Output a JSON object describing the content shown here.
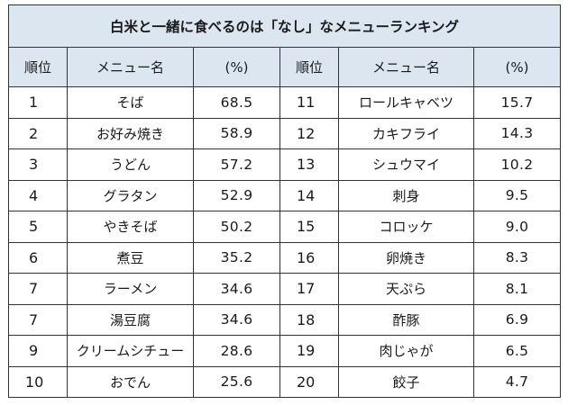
{
  "table": {
    "title": "白米と一緒に食べるのは「なし」なメニューランキング",
    "headers": {
      "rank": "順位",
      "menu": "メニュー名",
      "percent": "(%)"
    },
    "left": [
      {
        "rank": "1",
        "name": "そば",
        "pct": "68.5"
      },
      {
        "rank": "2",
        "name": "お好み焼き",
        "pct": "58.9"
      },
      {
        "rank": "3",
        "name": "うどん",
        "pct": "57.2"
      },
      {
        "rank": "4",
        "name": "グラタン",
        "pct": "52.9"
      },
      {
        "rank": "5",
        "name": "やきそば",
        "pct": "50.2"
      },
      {
        "rank": "6",
        "name": "煮豆",
        "pct": "35.2"
      },
      {
        "rank": "7",
        "name": "ラーメン",
        "pct": "34.6"
      },
      {
        "rank": "7",
        "name": "湯豆腐",
        "pct": "34.6"
      },
      {
        "rank": "9",
        "name": "クリームシチュー",
        "pct": "28.6"
      },
      {
        "rank": "10",
        "name": "おでん",
        "pct": "25.6"
      }
    ],
    "right": [
      {
        "rank": "11",
        "name": "ロールキャベツ",
        "pct": "15.7"
      },
      {
        "rank": "12",
        "name": "カキフライ",
        "pct": "14.3"
      },
      {
        "rank": "13",
        "name": "シュウマイ",
        "pct": "10.2"
      },
      {
        "rank": "14",
        "name": "刺身",
        "pct": "9.5"
      },
      {
        "rank": "15",
        "name": "コロッケ",
        "pct": "9.0"
      },
      {
        "rank": "16",
        "name": "卵焼き",
        "pct": "8.3"
      },
      {
        "rank": "17",
        "name": "天ぷら",
        "pct": "8.1"
      },
      {
        "rank": "18",
        "name": "酢豚",
        "pct": "6.9"
      },
      {
        "rank": "19",
        "name": "肉じゃが",
        "pct": "6.5"
      },
      {
        "rank": "20",
        "name": "餃子",
        "pct": "4.7"
      }
    ]
  }
}
